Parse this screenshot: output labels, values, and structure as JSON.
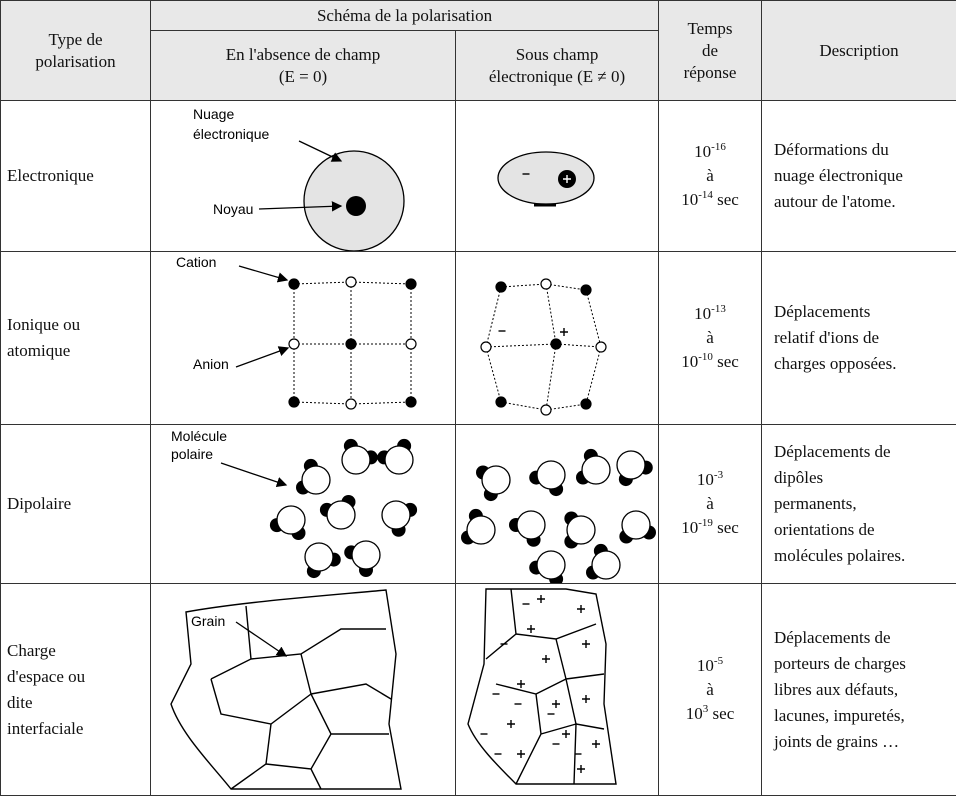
{
  "header": {
    "type": [
      "Type de",
      "polarisation"
    ],
    "schema": "Schéma de la polarisation",
    "without_field": [
      "En l'absence de champ",
      "(E = 0)"
    ],
    "with_field": [
      "Sous champ",
      "électronique (E ≠ 0)"
    ],
    "time": [
      "Temps",
      "de",
      "réponse"
    ],
    "description": "Description"
  },
  "rows": [
    {
      "type": [
        "Electronique"
      ],
      "labels": [
        "Nuage",
        "électronique",
        "Noyau"
      ],
      "time": {
        "from_base": "10",
        "from_exp": "-16",
        "sep": "à",
        "to_base": "10",
        "to_exp": "-14",
        "unit": "sec"
      },
      "description": [
        "Déformations du",
        "nuage électronique",
        "autour de l'atome."
      ]
    },
    {
      "type": [
        "Ionique ou",
        "atomique"
      ],
      "labels": [
        "Cation",
        "Anion"
      ],
      "time": {
        "from_base": "10",
        "from_exp": "-13",
        "sep": "à",
        "to_base": "10",
        "to_exp": "-10",
        "unit": "sec"
      },
      "description": [
        "Déplacements",
        "relatif d'ions de",
        "charges opposées."
      ]
    },
    {
      "type": [
        "Dipolaire"
      ],
      "labels": [
        "Molécule",
        "polaire"
      ],
      "time": {
        "from_base": "10",
        "from_exp": "-3",
        "sep": "à",
        "to_base": "10",
        "to_exp": "-19",
        "unit": "sec"
      },
      "description": [
        "Déplacements de",
        "dipôles",
        "permanents,",
        "orientations de",
        "molécules polaires."
      ]
    },
    {
      "type": [
        "Charge",
        "d'espace ou",
        "dite",
        "interfaciale"
      ],
      "labels": [
        "Grain"
      ],
      "time": {
        "from_base": "10",
        "from_exp": "-5",
        "sep": "à",
        "to_base": "10",
        "to_exp": "3",
        "unit": "sec"
      },
      "description": [
        "Déplacements de",
        "porteurs de charges",
        "libres aux défauts,",
        "lacunes, impuretés,",
        "joints de grains …"
      ]
    }
  ]
}
